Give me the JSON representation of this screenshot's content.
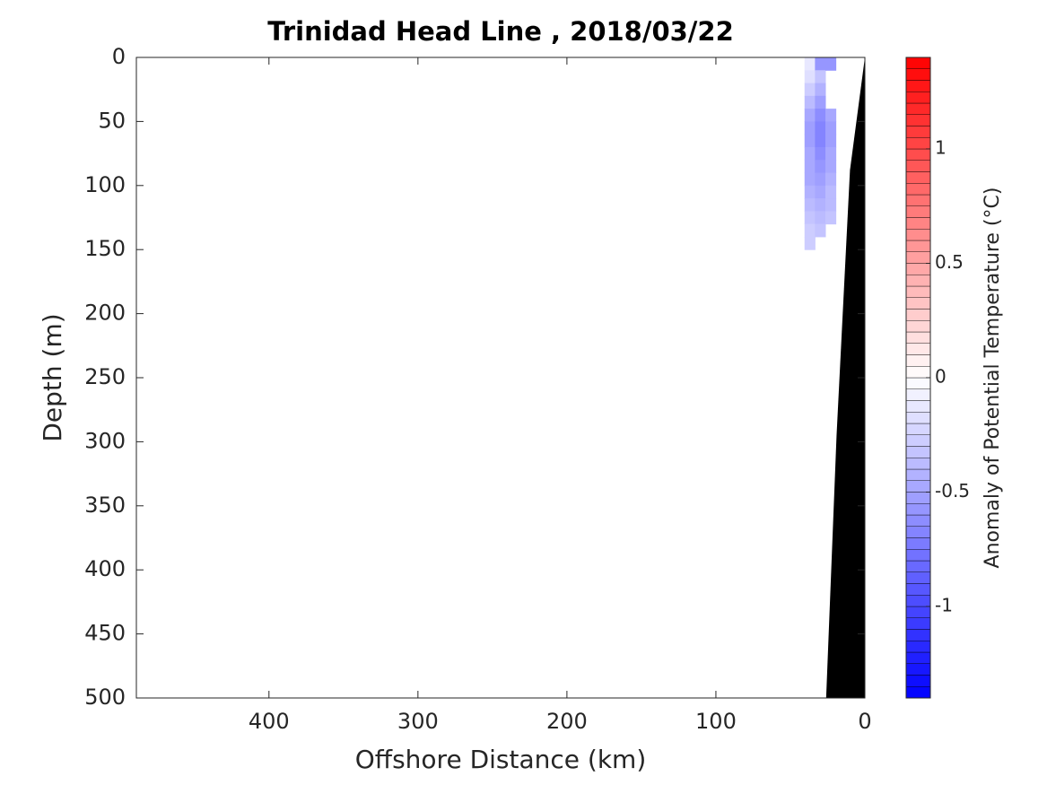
{
  "chart_data": {
    "type": "contour",
    "title": "Trinidad Head Line , 2018/03/22",
    "xlabel": "Offshore Distance (km)",
    "ylabel": "Depth (m)",
    "colorbar_label": "Anomaly of Potential Temperature (°C)",
    "xlim": [
      489,
      0
    ],
    "ylim": [
      0,
      500
    ],
    "xticks": [
      0,
      100,
      200,
      300,
      400
    ],
    "yticks": [
      0,
      50,
      100,
      150,
      200,
      250,
      300,
      350,
      400,
      450,
      500
    ],
    "clim": [
      -1.4,
      1.4
    ],
    "cticks": [
      -1,
      -0.5,
      0,
      0.5,
      1
    ],
    "bathymetry": {
      "x": [
        0,
        10,
        19,
        26
      ],
      "depth": [
        0,
        88,
        295,
        500
      ],
      "color": "#000000"
    },
    "anomaly": {
      "x": [
        37,
        30,
        23
      ],
      "depth": [
        5,
        15,
        25,
        35,
        45,
        55,
        65,
        75,
        85,
        95,
        105,
        115,
        125,
        135,
        145
      ],
      "values": [
        [
          -0.15,
          -0.2,
          -0.3,
          -0.4,
          -0.5,
          -0.55,
          -0.55,
          -0.5,
          -0.5,
          -0.5,
          -0.45,
          -0.4,
          -0.35,
          -0.3,
          -0.3
        ],
        [
          -0.6,
          -0.35,
          -0.45,
          -0.55,
          -0.65,
          -0.7,
          -0.7,
          -0.65,
          -0.6,
          -0.55,
          -0.5,
          -0.45,
          -0.4,
          -0.35,
          null
        ],
        [
          -0.6,
          null,
          null,
          null,
          -0.5,
          -0.55,
          -0.55,
          -0.5,
          -0.5,
          -0.45,
          -0.4,
          -0.4,
          -0.35,
          null,
          null
        ]
      ]
    }
  }
}
